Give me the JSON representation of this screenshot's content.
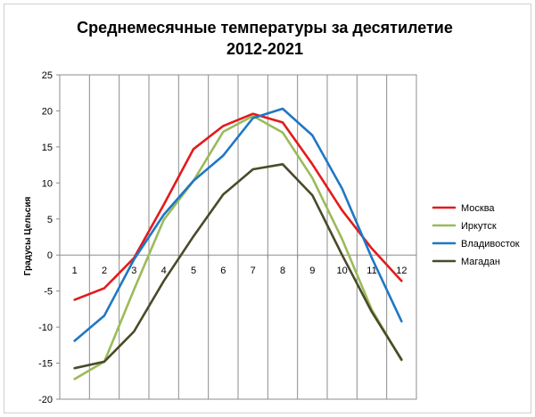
{
  "chart_data": {
    "type": "line",
    "title_lines": [
      "Среднемесячные температуры за десятилетие",
      "2012-2021"
    ],
    "ylabel": "Градусы Цельсия",
    "xlabel": "",
    "x": [
      "1",
      "2",
      "3",
      "4",
      "5",
      "6",
      "7",
      "8",
      "9",
      "10",
      "11",
      "12"
    ],
    "ylim": [
      -20,
      25
    ],
    "yticks": [
      "25",
      "20",
      "15",
      "10",
      "5",
      "0",
      "-5",
      "-10",
      "-15",
      "-20"
    ],
    "grid": "vertical",
    "legend": "right",
    "series": [
      {
        "name": "Москва",
        "color": "#e31a1c",
        "values": [
          -6.2,
          -4.6,
          -0.4,
          7.0,
          14.7,
          17.9,
          19.6,
          18.4,
          12.6,
          6.2,
          0.9,
          -3.6
        ]
      },
      {
        "name": "Иркутск",
        "color": "#9bbb59",
        "values": [
          -17.2,
          -14.8,
          -4.8,
          4.9,
          10.3,
          17.1,
          19.3,
          17.0,
          10.7,
          2.2,
          -7.6,
          -14.6
        ]
      },
      {
        "name": "Владивосток",
        "color": "#1f77c4",
        "values": [
          -11.9,
          -8.4,
          -0.6,
          5.6,
          10.3,
          13.8,
          19.0,
          20.3,
          16.6,
          9.2,
          -0.4,
          -9.2
        ]
      },
      {
        "name": "Магадан",
        "color": "#4a4a2a",
        "values": [
          -15.7,
          -14.8,
          -10.6,
          -3.6,
          2.6,
          8.4,
          11.9,
          12.6,
          8.3,
          0.0,
          -7.9,
          -14.5
        ]
      }
    ]
  }
}
